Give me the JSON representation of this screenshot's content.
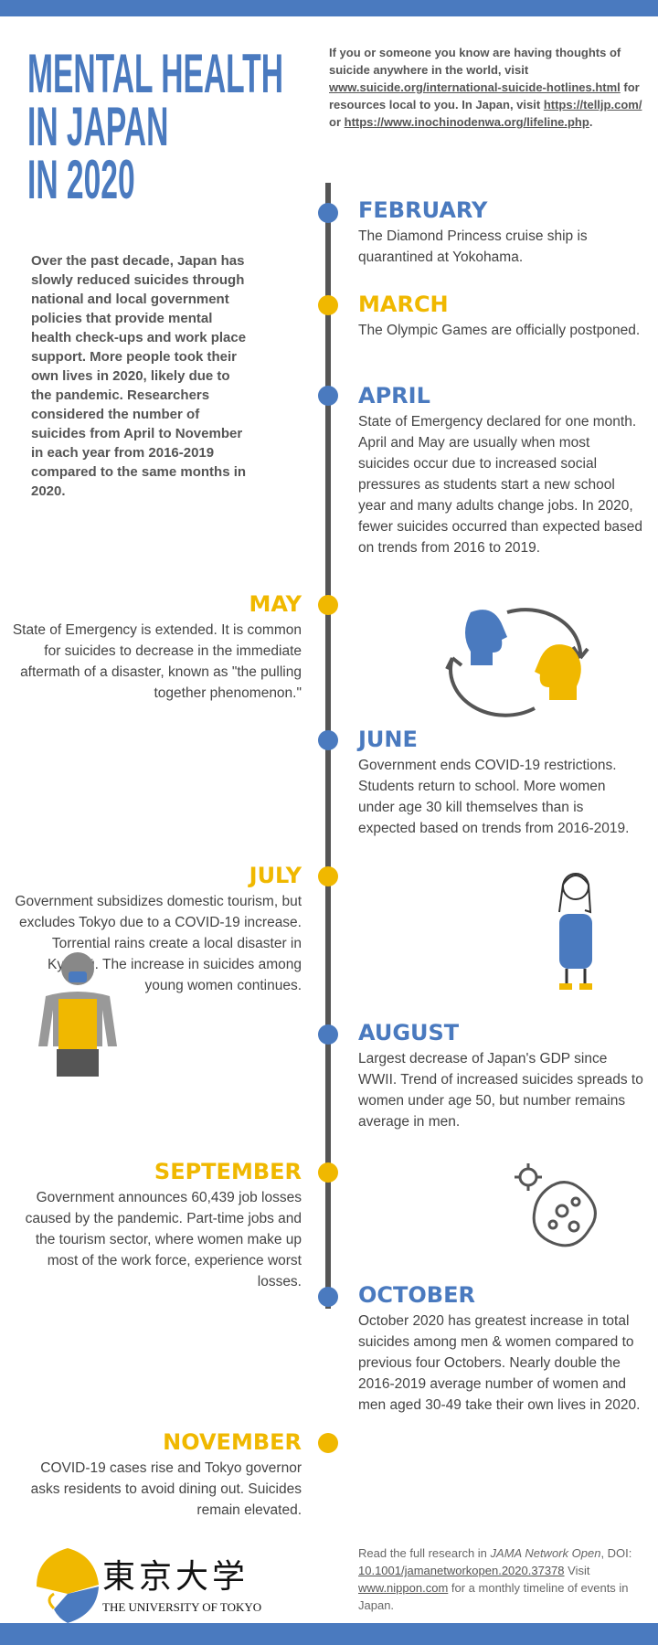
{
  "title": [
    "MENTAL HEALTH",
    "IN JAPAN",
    "IN 2020"
  ],
  "help": {
    "t1": "If you or someone you know are having thoughts of suicide anywhere in the world, visit ",
    "link1": "www.suicide.org/international-suicide-hotlines.html",
    "t2": " for resources local to you. In Japan, visit ",
    "link2": "https://telljp.com/",
    "t3": " or ",
    "link3": "https://www.inochinodenwa.org/lifeline.php",
    "t4": "."
  },
  "intro": "Over the past decade, Japan has slowly reduced suicides through national and local government policies that provide mental health check-ups and work place support. More people took their own lives in 2020, likely due to the pandemic. Researchers considered the number of suicides from April to November in each year from 2016-2019 compared to the same months in 2020.",
  "events": [
    {
      "month": "FEBRUARY",
      "text": "The Diamond Princess cruise ship is quarantined at Yokohama."
    },
    {
      "month": "MARCH",
      "text": "The Olympic Games are officially postponed."
    },
    {
      "month": "APRIL",
      "text": "State of Emergency declared for one month. April and May are usually when most suicides occur due to increased social pressures as students start a new school year and many adults change jobs. In 2020, fewer suicides occurred than expected based on trends from 2016 to 2019."
    },
    {
      "month": "MAY",
      "text": "State of Emergency is extended. It is common for suicides to decrease in the immediate aftermath of a disaster, known as \"the pulling together phenomenon.\""
    },
    {
      "month": "JUNE",
      "text": "Government ends COVID-19 restrictions. Students return to school. More women under age 30 kill themselves than is expected based on trends from 2016-2019."
    },
    {
      "month": "JULY",
      "text": "Government subsidizes domestic tourism, but excludes Tokyo due to a COVID-19 increase. Torrential rains create a local disaster in Kyūshū. The increase in suicides among young women continues."
    },
    {
      "month": "AUGUST",
      "text": "Largest decrease of Japan's GDP since WWII. Trend of increased suicides spreads to women under age 50, but number remains average in men."
    },
    {
      "month": "SEPTEMBER",
      "text": "Government announces 60,439 job losses caused by the pandemic. Part-time jobs and the tourism sector, where women make up most of the work force, experience worst losses."
    },
    {
      "month": "OCTOBER",
      "text": "October 2020 has greatest increase in total suicides among men & women compared to previous four Octobers. Nearly double the 2016-2019 average number of women and men aged 30-49 take their own lives in 2020."
    },
    {
      "month": "NOVEMBER",
      "text": "COVID-19 cases rise and Tokyo governor asks residents to avoid dining out. Suicides remain elevated."
    }
  ],
  "logo": {
    "kanji": "東京大学",
    "name": "THE UNIVERSITY OF TOKYO"
  },
  "footer": {
    "t1": "Read the full research in ",
    "journal": "JAMA Network Open",
    "t2": ", DOI: ",
    "doi": "10.1001/jamanetworkopen.2020.37378",
    "t3": " Visit ",
    "link": "www.nippon.com",
    "t4": " for a monthly timeline of events in Japan."
  },
  "colors": {
    "blue": "#4a7abf",
    "yellow": "#f0b800",
    "gray": "#555555"
  }
}
